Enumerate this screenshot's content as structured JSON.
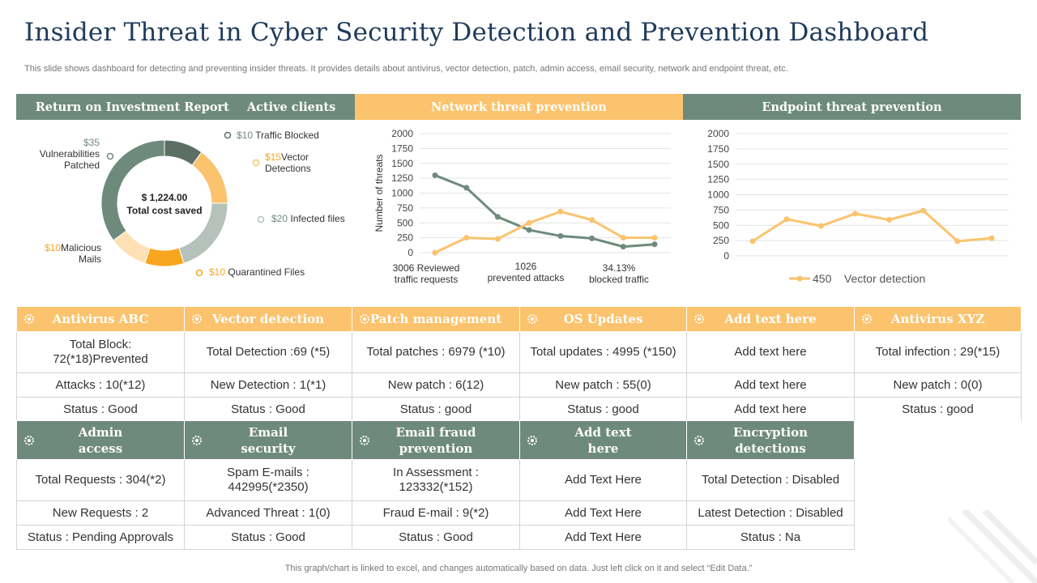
{
  "title": "Insider Threat in Cyber Security Detection and Prevention Dashboard",
  "subtitle": "This slide shows dashboard for detecting and preventing insider threats. It provides details about antivirus, vector detection, patch, admin access, email security, network and endpoint threat, etc.",
  "headers": {
    "roi": "Return on Investment Report",
    "active_clients": "Active clients",
    "network": "Network threat prevention",
    "endpoint": "Endpoint threat prevention"
  },
  "colors": {
    "green": "#6e8a7c",
    "orange": "#fbc36d",
    "dark_green": "#5b6f64",
    "deep_orange": "#f7a51d",
    "light_orange": "#fde0b3",
    "pale_green": "#b5c2bb"
  },
  "donut": {
    "center_value": "$ 1,224.00",
    "center_label": "Total cost saved",
    "segments": [
      {
        "amount": "$10",
        "label": "Traffic Blocked",
        "value": 10,
        "color": "#5b6f64"
      },
      {
        "amount": "$15",
        "label": "Vector Detections",
        "value": 15,
        "color": "#fbc36d"
      },
      {
        "amount": "$20",
        "label": "Infected files",
        "value": 20,
        "color": "#b5c2bb"
      },
      {
        "amount": "$10",
        "label": "Quarantined Files",
        "value": 10,
        "color": "#f7a51d"
      },
      {
        "amount": "$10",
        "label": "Malicious Mails",
        "value": 10,
        "color": "#fde0b3"
      },
      {
        "amount": "$35",
        "label": "Vulnerabilities Patched",
        "value": 35,
        "color": "#6e8a7c"
      }
    ]
  },
  "chart_data": [
    {
      "type": "line",
      "title": "Network threat prevention",
      "ylabel": "Number of threats",
      "ylim": [
        0,
        2000
      ],
      "yticks": [
        0,
        250,
        500,
        750,
        1000,
        1250,
        1500,
        1750,
        2000
      ],
      "x": [
        1,
        2,
        3,
        4,
        5,
        6,
        7,
        8
      ],
      "series": [
        {
          "color": "#6e8a7c",
          "values": [
            1300,
            1090,
            600,
            380,
            280,
            240,
            100,
            140
          ]
        },
        {
          "color": "#fbc36d",
          "values": [
            0,
            250,
            230,
            500,
            690,
            550,
            250,
            250
          ]
        }
      ],
      "annotations": [
        "3006 Reviewed traffic requests",
        "1026 prevented attacks",
        "34.13% blocked traffic"
      ]
    },
    {
      "type": "line",
      "title": "Endpoint threat prevention",
      "ylim": [
        0,
        2000
      ],
      "yticks": [
        0,
        250,
        500,
        750,
        1000,
        1250,
        1500,
        1750,
        2000
      ],
      "x": [
        1,
        2,
        3,
        4,
        5,
        6,
        7,
        8
      ],
      "series": [
        {
          "name": "450    Vector detection",
          "color": "#fbc36d",
          "values": [
            240,
            600,
            490,
            690,
            590,
            740,
            240,
            290
          ]
        }
      ]
    }
  ],
  "table1": {
    "headers": [
      "Antivirus ABC",
      "Vector detection",
      "Patch management",
      "OS Updates",
      "Add text here",
      "Antivirus XYZ"
    ],
    "rows": [
      [
        "Total Block: 72(*18)Prevented",
        "Total Detection :69 (*5)",
        "Total patches : 6979 (*10)",
        "Total updates : 4995 (*150)",
        "Add text here",
        "Total infection : 29(*15)"
      ],
      [
        "Attacks : 10(*12)",
        "New Detection : 1(*1)",
        "New patch : 6(12)",
        "New patch : 55(0)",
        "Add text here",
        "New patch : 0(0)"
      ],
      [
        "Status :  Good",
        "Status : Good",
        "Status : good",
        "Status : good",
        "Add text here",
        "Status : good"
      ]
    ]
  },
  "table2": {
    "headers": [
      "Admin access",
      "Email security",
      "Email fraud prevention",
      "Add text here",
      "Encryption detections"
    ],
    "rows": [
      [
        "Total Requests : 304(*2)",
        "Spam E-mails : 442995(*2350)",
        "In Assessment : 123332(*152)",
        "Add Text Here",
        "Total Detection : Disabled"
      ],
      [
        "New Requests : 2",
        "Advanced Threat : 1(0)",
        "Fraud E-mail : 9(*2)",
        "Add Text Here",
        "Latest Detection : Disabled"
      ],
      [
        "Status : Pending Approvals",
        "Status : Good",
        "Status : Good",
        "Add Text Here",
        "Status : Na"
      ]
    ]
  },
  "footer": "This graph/chart is linked to excel,  and changes automatically based on data. Just left click on it and select “Edit Data.”"
}
